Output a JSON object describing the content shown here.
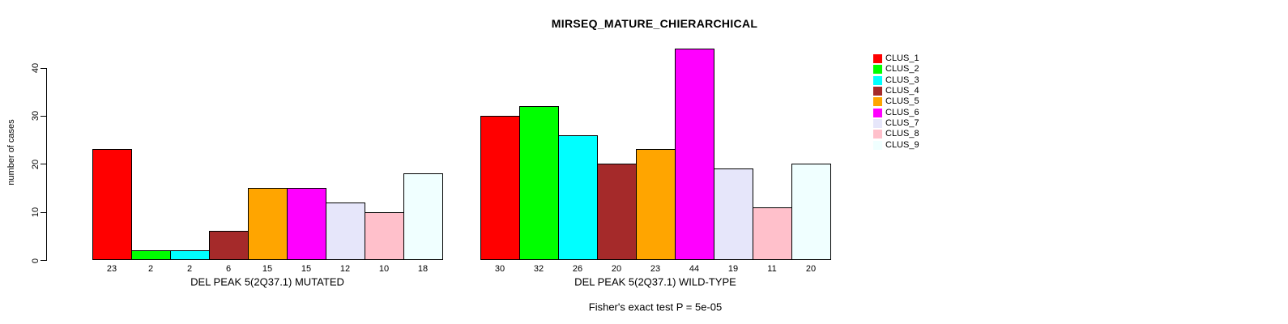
{
  "figure": {
    "background": "#ffffff",
    "axis_color": "#000000"
  },
  "chart_data": {
    "type": "bar",
    "title": "MIRSEQ_MATURE_CHIERARCHICAL",
    "ylabel": "number of cases",
    "ylim": [
      0,
      44
    ],
    "yticks": [
      0,
      10,
      20,
      30,
      40
    ],
    "grid": false,
    "annotation": "Fisher's exact test P = 5e-05",
    "categories": [
      "CLUS_1",
      "CLUS_2",
      "CLUS_3",
      "CLUS_4",
      "CLUS_5",
      "CLUS_6",
      "CLUS_7",
      "CLUS_8",
      "CLUS_9"
    ],
    "panels": [
      {
        "xlabel": "DEL PEAK 5(2Q37.1) MUTATED",
        "values": [
          23,
          2,
          2,
          6,
          15,
          15,
          12,
          10,
          18
        ],
        "bar_labels": [
          "23",
          "2",
          "2",
          "6",
          "15",
          "15",
          "12",
          "10",
          "18"
        ]
      },
      {
        "xlabel": "DEL PEAK 5(2Q37.1) WILD-TYPE",
        "values": [
          30,
          32,
          26,
          20,
          23,
          44,
          19,
          11,
          20
        ],
        "bar_labels": [
          "30",
          "32",
          "26",
          "20",
          "23",
          "44",
          "19",
          "11",
          "20"
        ]
      }
    ],
    "legend": {
      "position": "right",
      "entries": [
        {
          "label": "CLUS_1",
          "color": "#FF0000"
        },
        {
          "label": "CLUS_2",
          "color": "#00FF00"
        },
        {
          "label": "CLUS_3",
          "color": "#00FFFF"
        },
        {
          "label": "CLUS_4",
          "color": "#A52A2A"
        },
        {
          "label": "CLUS_5",
          "color": "#FFA500"
        },
        {
          "label": "CLUS_6",
          "color": "#FF00FF"
        },
        {
          "label": "CLUS_7",
          "color": "#E6E6FA"
        },
        {
          "label": "CLUS_8",
          "color": "#FFC0CB"
        },
        {
          "label": "CLUS_9",
          "color": "#F0FFFF"
        }
      ]
    }
  }
}
